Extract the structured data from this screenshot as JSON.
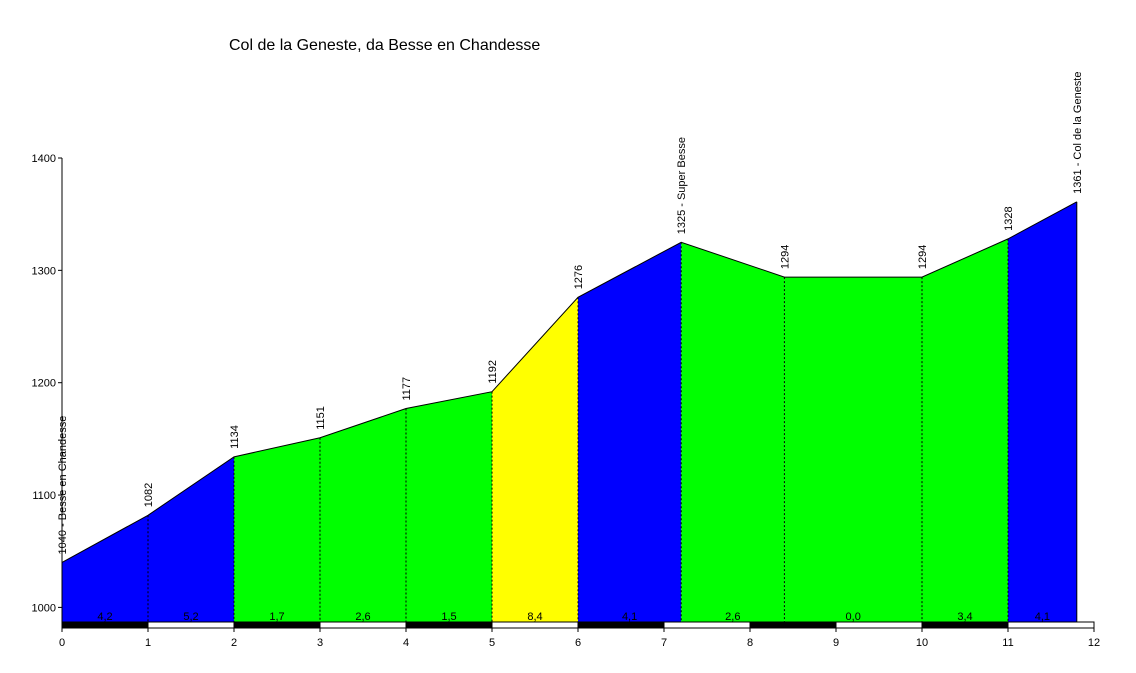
{
  "chart_data": {
    "type": "area",
    "title": "Col de la Geneste, da Besse en Chandesse",
    "xlim": [
      0,
      12
    ],
    "ylim": [
      987,
      1400
    ],
    "x_ticks": [
      "0",
      "1",
      "2",
      "3",
      "4",
      "5",
      "6",
      "7",
      "8",
      "9",
      "10",
      "11",
      "12"
    ],
    "y_ticks": [
      {
        "value": 1000,
        "label": "1000"
      },
      {
        "value": 1100,
        "label": "1100"
      },
      {
        "value": 1200,
        "label": "1200"
      },
      {
        "value": 1300,
        "label": "1300"
      },
      {
        "value": 1400,
        "label": "1400"
      }
    ],
    "points": [
      {
        "x": 0,
        "y": 1040,
        "label": "1040 - Besse en Chandesse"
      },
      {
        "x": 1,
        "y": 1082,
        "label": "1082"
      },
      {
        "x": 2,
        "y": 1134,
        "label": "1134"
      },
      {
        "x": 3,
        "y": 1151,
        "label": "1151"
      },
      {
        "x": 4,
        "y": 1177,
        "label": "1177"
      },
      {
        "x": 5,
        "y": 1192,
        "label": "1192"
      },
      {
        "x": 6,
        "y": 1276,
        "label": "1276"
      },
      {
        "x": 7.2,
        "y": 1325,
        "label": "1325 - Super Besse"
      },
      {
        "x": 8.4,
        "y": 1294,
        "label": "1294"
      },
      {
        "x": 10,
        "y": 1294,
        "label": "1294"
      },
      {
        "x": 11,
        "y": 1328,
        "label": "1328"
      },
      {
        "x": 11.8,
        "y": 1361,
        "label": "1361 - Col de la Geneste"
      }
    ],
    "segments": [
      {
        "gradient": "4,2",
        "color": "#0000ff"
      },
      {
        "gradient": "5,2",
        "color": "#0000ff"
      },
      {
        "gradient": "1,7",
        "color": "#00ff00"
      },
      {
        "gradient": "2,6",
        "color": "#00ff00"
      },
      {
        "gradient": "1,5",
        "color": "#00ff00"
      },
      {
        "gradient": "8,4",
        "color": "#ffff00"
      },
      {
        "gradient": "4,1",
        "color": "#0000ff"
      },
      {
        "gradient": "2,6",
        "color": "#00ff00"
      },
      {
        "gradient": "0,0",
        "color": "#00ff00"
      },
      {
        "gradient": "3,4",
        "color": "#00ff00"
      },
      {
        "gradient": "4,1",
        "color": "#0000ff"
      }
    ]
  }
}
